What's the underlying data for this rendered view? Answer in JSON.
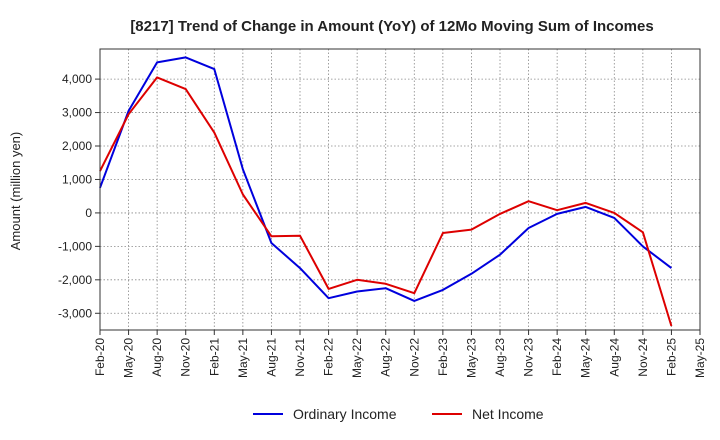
{
  "chart_data": {
    "type": "line",
    "title": "[8217]  Trend of Change in Amount (YoY) of 12Mo Moving Sum of Incomes",
    "xlabel": "",
    "ylabel": "Amount (million yen)",
    "ylim": [
      -3500,
      4900
    ],
    "yticks": [
      -3000,
      -2000,
      -1000,
      0,
      1000,
      2000,
      3000,
      4000
    ],
    "ytick_labels": [
      "-3,000",
      "-2,000",
      "-1,000",
      "0",
      "1,000",
      "2,000",
      "3,000",
      "4,000"
    ],
    "x": [
      "Feb-20",
      "May-20",
      "Aug-20",
      "Nov-20",
      "Feb-21",
      "May-21",
      "Aug-21",
      "Nov-21",
      "Feb-22",
      "May-22",
      "Aug-22",
      "Nov-22",
      "Feb-23",
      "May-23",
      "Aug-23",
      "Nov-23",
      "Feb-24",
      "May-24",
      "Aug-24",
      "Nov-24",
      "Feb-25",
      "May-25"
    ],
    "grid": true,
    "legend_position": "bottom",
    "series": [
      {
        "name": "Ordinary Income",
        "color": "#0000dd",
        "values": [
          750,
          3050,
          4500,
          4650,
          4300,
          1300,
          -900,
          -1650,
          -2550,
          -2350,
          -2250,
          -2630,
          -2300,
          -1820,
          -1250,
          -450,
          -30,
          180,
          -150,
          -1000,
          -1650,
          null
        ]
      },
      {
        "name": "Net Income",
        "color": "#dd0000",
        "values": [
          1250,
          2950,
          4050,
          3700,
          2400,
          550,
          -700,
          -680,
          -2270,
          -2000,
          -2120,
          -2400,
          -600,
          -500,
          -30,
          350,
          80,
          300,
          0,
          -580,
          -3380,
          null
        ]
      }
    ]
  }
}
